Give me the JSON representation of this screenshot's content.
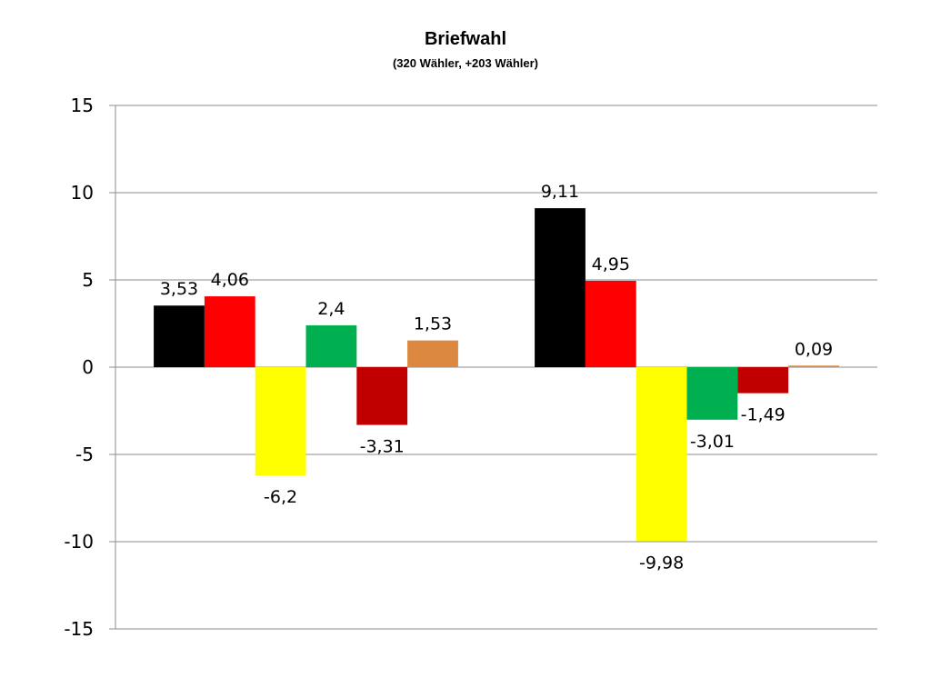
{
  "chart_data": {
    "type": "bar",
    "title": "Briefwahl",
    "subtitle": "(320 Wähler, +203 Wähler)",
    "categories": [
      "",
      ""
    ],
    "ylim": [
      -15,
      15
    ],
    "yticks": [
      15,
      10,
      5,
      0,
      -5,
      -10,
      -15
    ],
    "grid": true,
    "series": [
      {
        "color": "#000000",
        "values": [
          3.53,
          9.11
        ],
        "labels": [
          "3,53",
          "9,11"
        ]
      },
      {
        "color": "#ff0000",
        "values": [
          4.06,
          4.95
        ],
        "labels": [
          "4,06",
          "4,95"
        ]
      },
      {
        "color": "#ffff00",
        "values": [
          -6.2,
          -9.98
        ],
        "labels": [
          "-6,2",
          "-9,98"
        ]
      },
      {
        "color": "#00b050",
        "values": [
          2.4,
          -3.01
        ],
        "labels": [
          "2,4",
          "-3,01"
        ]
      },
      {
        "color": "#c00000",
        "values": [
          -3.31,
          -1.49
        ],
        "labels": [
          "-3,31",
          "-1,49"
        ]
      },
      {
        "color": "#dc8840",
        "values": [
          1.53,
          0.09
        ],
        "labels": [
          "1,53",
          "0,09"
        ]
      }
    ]
  }
}
